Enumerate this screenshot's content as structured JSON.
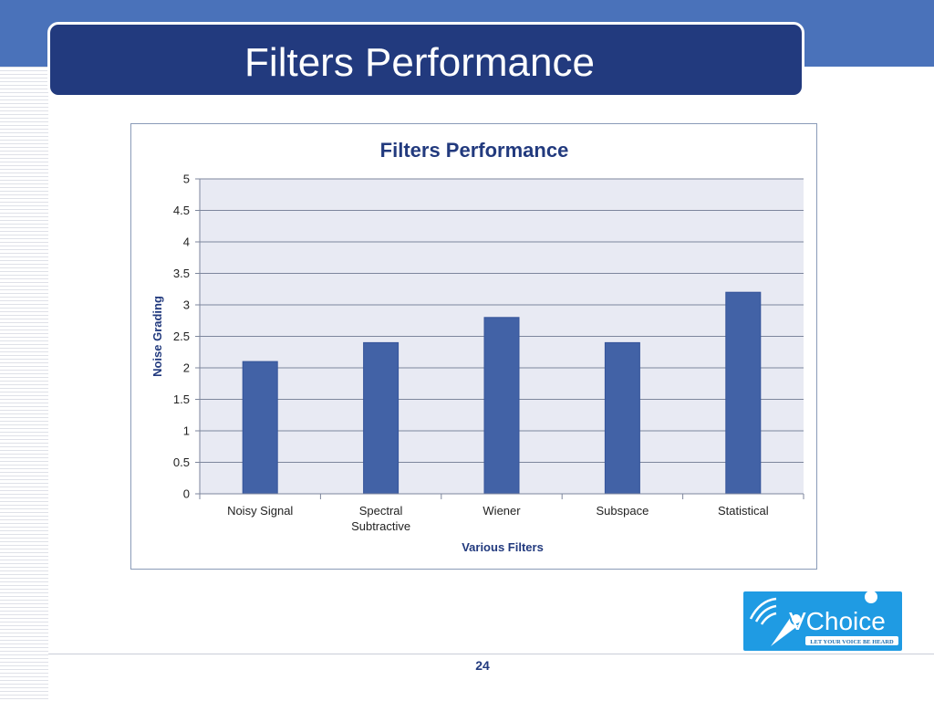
{
  "slide": {
    "title": "Filters Performance",
    "page_number": "24"
  },
  "logo": {
    "brand_name": "VChoice",
    "tagline": "LET YOUR VOICE BE HEARD"
  },
  "colors": {
    "header_band": "#4a72ba",
    "title_bar": "#223a7e",
    "bar_fill": "#4262a6",
    "plot_background": "#e8eaf3",
    "logo_blue": "#1f9be3"
  },
  "chart_data": {
    "type": "bar",
    "title": "Filters Performance",
    "xlabel": "Various Filters",
    "ylabel": "Noise Grading",
    "categories": [
      "Noisy Signal",
      "Spectral Subtractive",
      "Wiener",
      "Subspace",
      "Statistical"
    ],
    "values": [
      2.1,
      2.4,
      2.8,
      2.4,
      3.2
    ],
    "ylim": [
      0,
      5
    ],
    "yticks": [
      "0",
      "0.5",
      "1",
      "1.5",
      "2",
      "2.5",
      "3",
      "3.5",
      "4",
      "4.5",
      "5"
    ],
    "grid": true,
    "legend": "none"
  }
}
